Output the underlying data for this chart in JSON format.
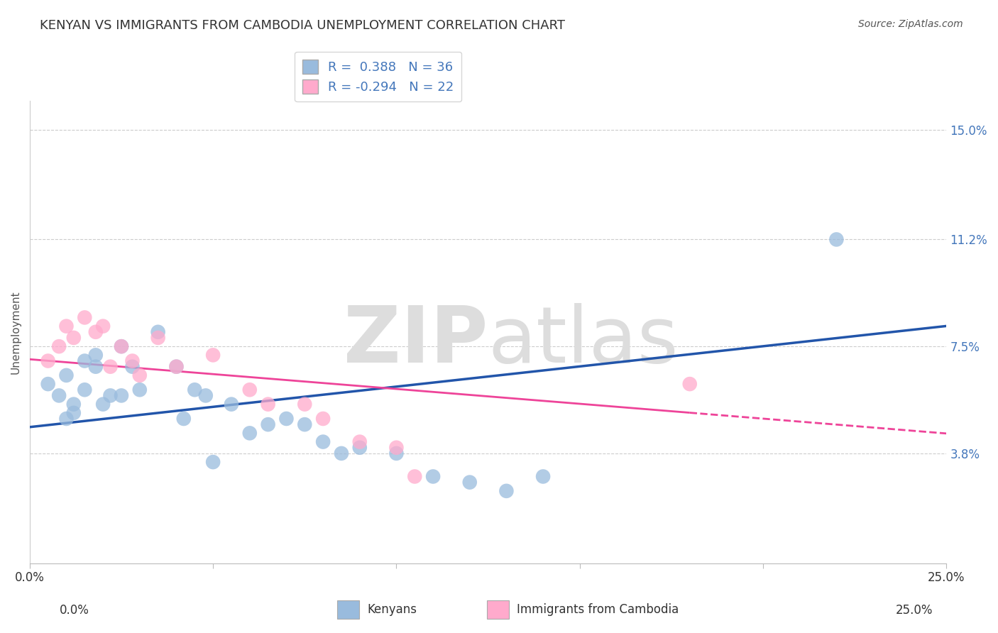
{
  "title": "KENYAN VS IMMIGRANTS FROM CAMBODIA UNEMPLOYMENT CORRELATION CHART",
  "source_text": "Source: ZipAtlas.com",
  "ylabel": "Unemployment",
  "xlim": [
    0.0,
    0.25
  ],
  "ylim": [
    0.0,
    0.16
  ],
  "yticks": [
    0.038,
    0.075,
    0.112,
    0.15
  ],
  "ytick_labels": [
    "3.8%",
    "7.5%",
    "11.2%",
    "15.0%"
  ],
  "xtick_labels": [
    "0.0%",
    "",
    "",
    "",
    "",
    "25.0%"
  ],
  "blue_R": 0.388,
  "blue_N": 36,
  "pink_R": -0.294,
  "pink_N": 22,
  "blue_color": "#99BBDD",
  "pink_color": "#FFAACC",
  "blue_line_color": "#2255AA",
  "pink_line_color": "#EE4499",
  "watermark_color": "#DDDDDD",
  "background_color": "#FFFFFF",
  "blue_x": [
    0.005,
    0.008,
    0.01,
    0.012,
    0.015,
    0.018,
    0.02,
    0.022,
    0.01,
    0.012,
    0.015,
    0.018,
    0.025,
    0.028,
    0.03,
    0.035,
    0.04,
    0.042,
    0.045,
    0.048,
    0.055,
    0.06,
    0.065,
    0.07,
    0.075,
    0.08,
    0.085,
    0.09,
    0.1,
    0.11,
    0.12,
    0.13,
    0.14,
    0.025,
    0.22,
    0.05
  ],
  "blue_y": [
    0.062,
    0.058,
    0.065,
    0.055,
    0.06,
    0.068,
    0.055,
    0.058,
    0.05,
    0.052,
    0.07,
    0.072,
    0.075,
    0.068,
    0.06,
    0.08,
    0.068,
    0.05,
    0.06,
    0.058,
    0.055,
    0.045,
    0.048,
    0.05,
    0.048,
    0.042,
    0.038,
    0.04,
    0.038,
    0.03,
    0.028,
    0.025,
    0.03,
    0.058,
    0.112,
    0.035
  ],
  "pink_x": [
    0.005,
    0.008,
    0.01,
    0.012,
    0.015,
    0.018,
    0.02,
    0.025,
    0.028,
    0.03,
    0.035,
    0.04,
    0.05,
    0.06,
    0.065,
    0.075,
    0.08,
    0.09,
    0.1,
    0.105,
    0.18,
    0.022
  ],
  "pink_y": [
    0.07,
    0.075,
    0.082,
    0.078,
    0.085,
    0.08,
    0.082,
    0.075,
    0.07,
    0.065,
    0.078,
    0.068,
    0.072,
    0.06,
    0.055,
    0.055,
    0.05,
    0.042,
    0.04,
    0.03,
    0.062,
    0.068
  ],
  "title_fontsize": 13,
  "axis_label_fontsize": 11,
  "tick_fontsize": 12,
  "legend_fontsize": 13
}
